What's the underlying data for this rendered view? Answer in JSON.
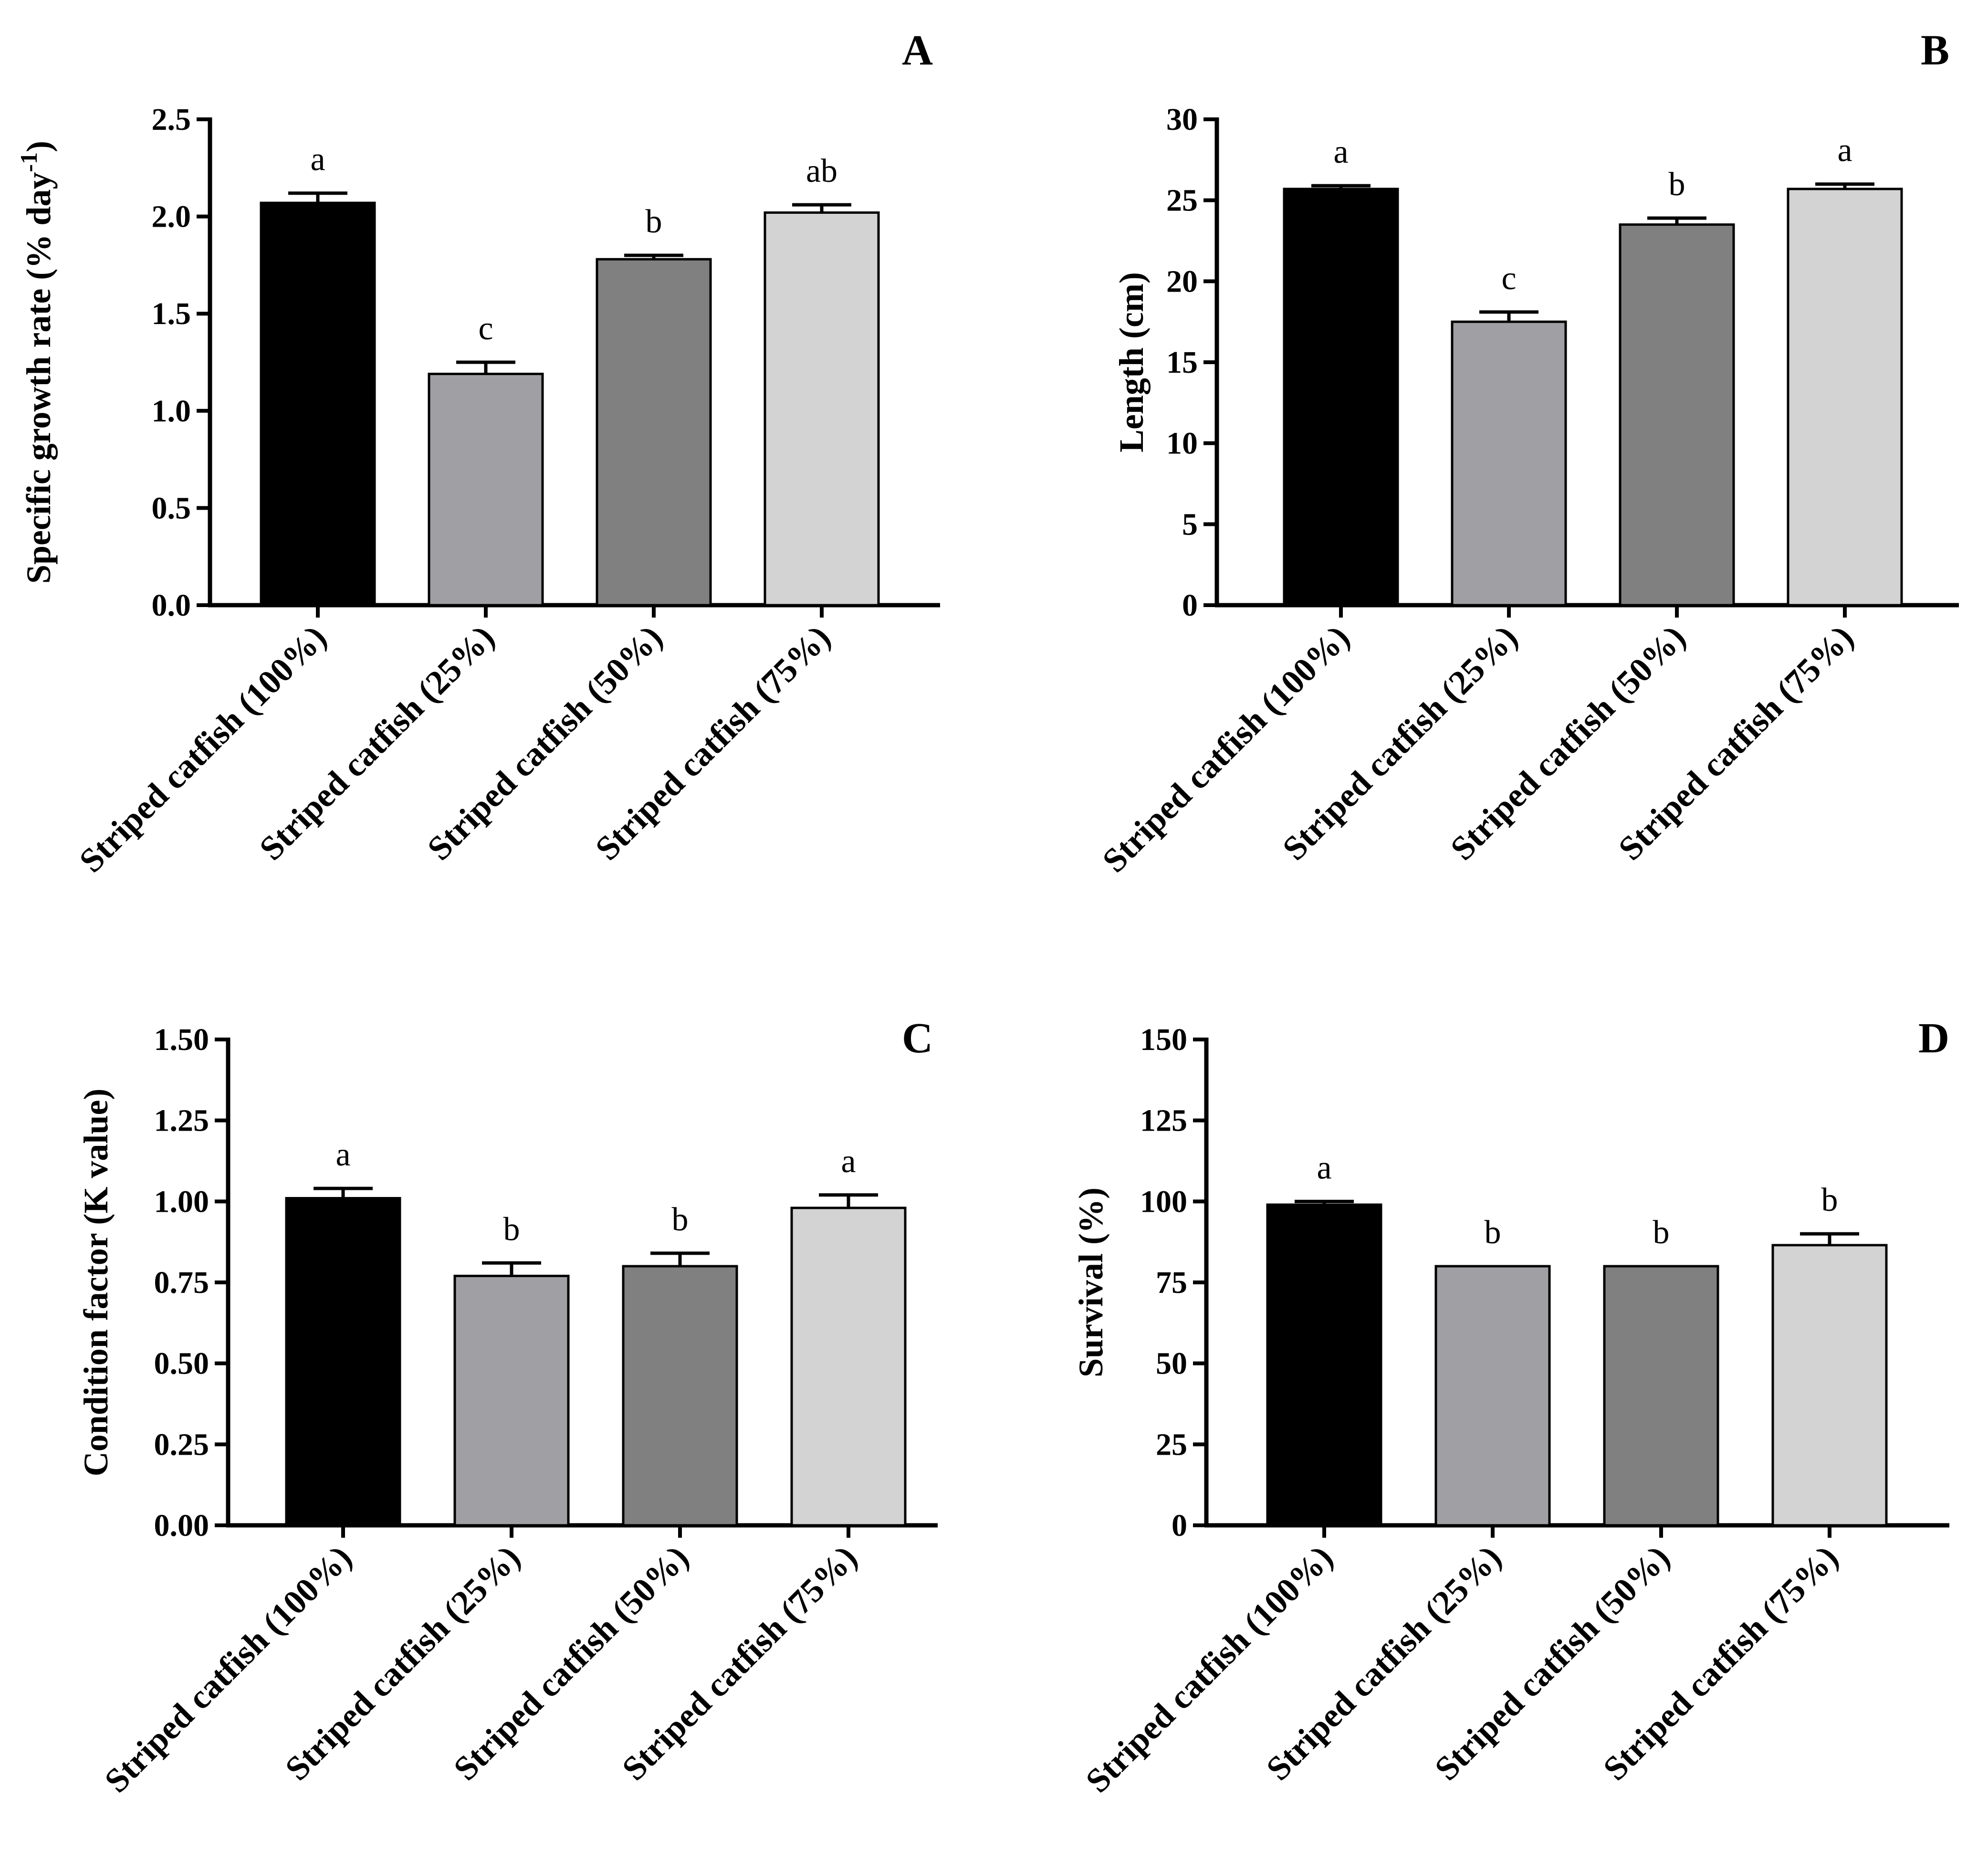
{
  "chart_data": [
    {
      "type": "bar",
      "panel_label": "A",
      "ylabel": "Specific growth rate (% day",
      "ylabel_sup": "-1",
      "ylabel_close": ")",
      "ylim": [
        0,
        2.5
      ],
      "yticks": [
        "0.0",
        "0.5",
        "1.0",
        "1.5",
        "2.0",
        "2.5"
      ],
      "categories": [
        "Striped catfish (100%)",
        "Striped catfish (25%)",
        "Striped catfish (50%)",
        "Striped catfish (75%)"
      ],
      "values": [
        2.07,
        1.19,
        1.78,
        2.02
      ],
      "errors": [
        0.05,
        0.06,
        0.02,
        0.04
      ],
      "letters": [
        "a",
        "c",
        "b",
        "ab"
      ],
      "colors": [
        "#000000",
        "#a0a0a4",
        "#808080",
        "#d3d3d3"
      ]
    },
    {
      "type": "bar",
      "panel_label": "B",
      "ylabel": "Length (cm)",
      "ylim": [
        0,
        30
      ],
      "yticks": [
        "0",
        "5",
        "10",
        "15",
        "20",
        "25",
        "30"
      ],
      "categories": [
        "Striped catfish (100%)",
        "Striped catfish (25%)",
        "Striped catfish (50%)",
        "Striped catfish (75%)"
      ],
      "values": [
        25.7,
        17.5,
        23.5,
        25.7
      ],
      "errors": [
        0.2,
        0.6,
        0.4,
        0.3
      ],
      "letters": [
        "a",
        "c",
        "b",
        "a"
      ],
      "colors": [
        "#000000",
        "#a0a0a4",
        "#808080",
        "#d3d3d3"
      ]
    },
    {
      "type": "bar",
      "panel_label": "C",
      "ylabel": "Condition factor (K value)",
      "ylim": [
        0,
        1.5
      ],
      "yticks": [
        "0.00",
        "0.25",
        "0.50",
        "0.75",
        "1.00",
        "1.25",
        "1.50"
      ],
      "categories": [
        "Striped catfish (100%)",
        "Striped catfish (25%)",
        "Striped catfish (50%)",
        "Striped catfish (75%)"
      ],
      "values": [
        1.01,
        0.77,
        0.8,
        0.98
      ],
      "errors": [
        0.03,
        0.04,
        0.04,
        0.04
      ],
      "letters": [
        "a",
        "b",
        "b",
        "a"
      ],
      "colors": [
        "#000000",
        "#a0a0a4",
        "#808080",
        "#d3d3d3"
      ]
    },
    {
      "type": "bar",
      "panel_label": "D",
      "ylabel": "Survival (%)",
      "ylim": [
        0,
        150
      ],
      "yticks": [
        "0",
        "25",
        "50",
        "75",
        "100",
        "125",
        "150"
      ],
      "categories": [
        "Striped catfish (100%)",
        "Striped catfish (25%)",
        "Striped catfish (50%)",
        "Striped catfish (75%)"
      ],
      "values": [
        99,
        80,
        80,
        86.5
      ],
      "errors": [
        1,
        0,
        0,
        3.5
      ],
      "letters": [
        "a",
        "b",
        "b",
        "b"
      ],
      "colors": [
        "#000000",
        "#a0a0a4",
        "#808080",
        "#d3d3d3"
      ]
    }
  ]
}
